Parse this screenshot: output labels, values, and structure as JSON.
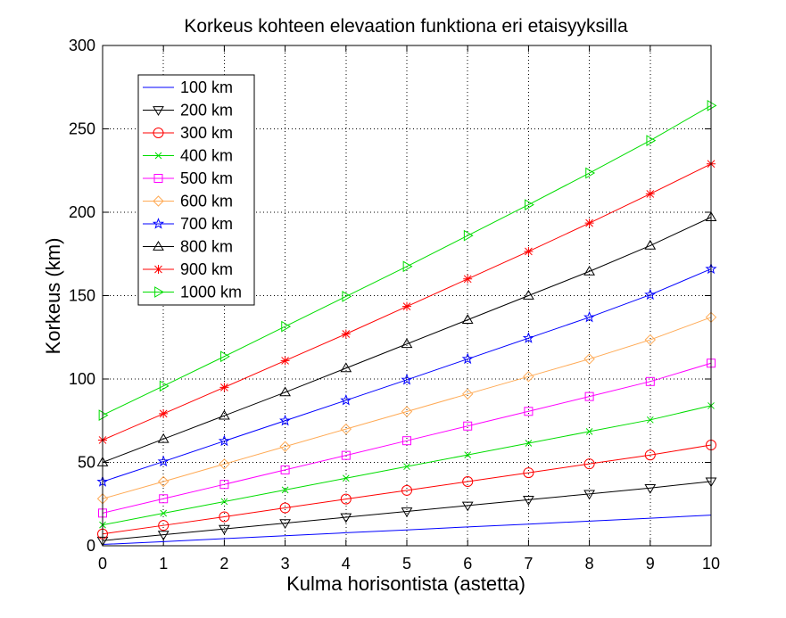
{
  "chart_data": {
    "type": "line",
    "title": "Korkeus kohteen elevaation funktiona eri etaisyyksilla",
    "xlabel": "Kulma horisontista (astetta)",
    "ylabel": "Korkeus (km)",
    "xlim": [
      0,
      10
    ],
    "ylim": [
      0,
      300
    ],
    "xticks": [
      0,
      1,
      2,
      3,
      4,
      5,
      6,
      7,
      8,
      9,
      10
    ],
    "yticks": [
      0,
      50,
      100,
      150,
      200,
      250,
      300
    ],
    "grid": true,
    "legend_position": "top-left",
    "x": [
      0,
      1,
      2,
      3,
      4,
      5,
      6,
      7,
      8,
      9,
      10
    ],
    "series": [
      {
        "name": "100 km",
        "color": "#0000ff",
        "marker": "none",
        "values": [
          0.8,
          2.5,
          4.3,
          6.0,
          7.8,
          9.5,
          11.3,
          13.0,
          14.8,
          16.5,
          18.4
        ]
      },
      {
        "name": "200 km",
        "color": "#000000",
        "marker": "triangle-down",
        "values": [
          3.1,
          6.6,
          10.1,
          13.6,
          17.1,
          20.6,
          24.1,
          27.6,
          31.1,
          34.6,
          38.6
        ]
      },
      {
        "name": "300 km",
        "color": "#ff0000",
        "marker": "circle",
        "values": [
          7.1,
          12.2,
          17.4,
          22.7,
          28.0,
          33.2,
          38.5,
          43.8,
          49.1,
          54.4,
          60.4
        ]
      },
      {
        "name": "400 km",
        "color": "#00dd00",
        "marker": "x",
        "values": [
          12.5,
          19.5,
          26.5,
          33.5,
          40.5,
          47.5,
          54.5,
          61.5,
          68.5,
          75.5,
          84.0
        ]
      },
      {
        "name": "500 km",
        "color": "#ff00ff",
        "marker": "square",
        "values": [
          19.6,
          28.2,
          36.8,
          45.5,
          54.2,
          63.0,
          71.8,
          80.6,
          89.5,
          98.5,
          109.5
        ]
      },
      {
        "name": "600 km",
        "color": "#ffaa55",
        "marker": "diamond",
        "values": [
          28.2,
          38.5,
          49.0,
          59.5,
          70.0,
          80.5,
          91.0,
          101.5,
          112.0,
          123.5,
          137.0
        ]
      },
      {
        "name": "700 km",
        "color": "#0000ff",
        "marker": "star",
        "values": [
          38.4,
          50.5,
          62.8,
          75.0,
          87.2,
          99.5,
          112.0,
          124.5,
          137.0,
          150.5,
          166.0
        ]
      },
      {
        "name": "800 km",
        "color": "#000000",
        "marker": "triangle-up",
        "values": [
          50.0,
          64.0,
          78.0,
          92.0,
          106.5,
          121.0,
          135.5,
          150.0,
          164.5,
          180.0,
          197.0
        ]
      },
      {
        "name": "900 km",
        "color": "#ff0000",
        "marker": "asterisk",
        "values": [
          63.4,
          79.2,
          95.0,
          111.0,
          127.0,
          143.5,
          160.0,
          176.5,
          193.5,
          211.0,
          229.0
        ]
      },
      {
        "name": "1000 km",
        "color": "#00dd00",
        "marker": "triangle-right",
        "values": [
          78.3,
          95.8,
          113.5,
          131.5,
          149.5,
          167.5,
          186.0,
          204.5,
          223.5,
          243.0,
          264.0
        ]
      }
    ]
  }
}
